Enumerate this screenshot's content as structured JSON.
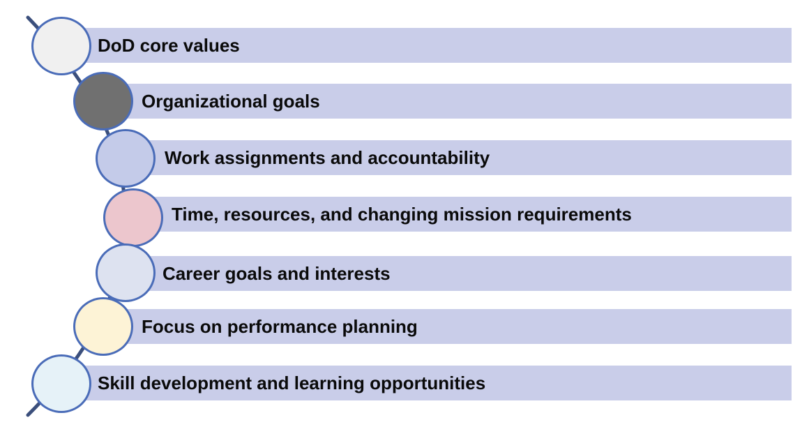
{
  "items": [
    {
      "label": "DoD core values",
      "circle_color": "#f0f0f0"
    },
    {
      "label": "Organizational goals",
      "circle_color": "#707070"
    },
    {
      "label": "Work assignments and accountability",
      "circle_color": "#c4cbe9"
    },
    {
      "label": "Time, resources, and changing mission requirements",
      "circle_color": "#ecc6cd"
    },
    {
      "label": "Career goals and interests",
      "circle_color": "#dde2f0"
    },
    {
      "label": "Focus on performance planning",
      "circle_color": "#fdf3d6"
    },
    {
      "label": "Skill development and learning opportunities",
      "circle_color": "#e6f2f8"
    }
  ],
  "colors": {
    "bar": "#c9cde9",
    "arc": "#3b4f7c",
    "circle_border": "#4a6cb8"
  }
}
